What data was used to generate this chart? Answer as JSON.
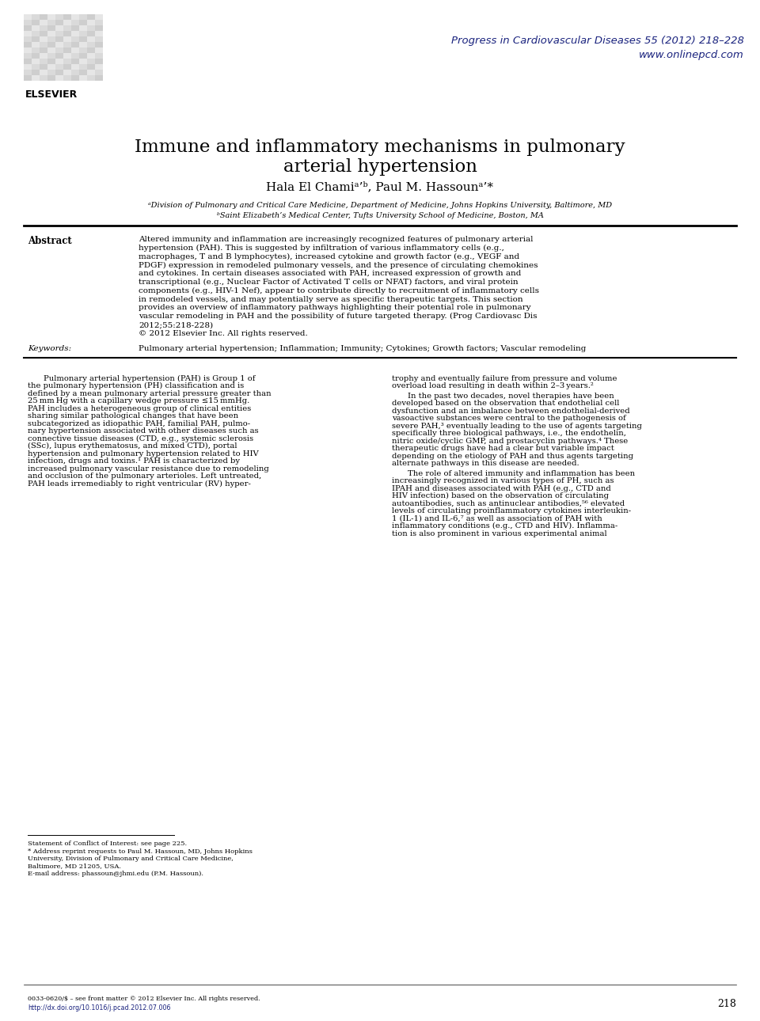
{
  "bg_color": "#ffffff",
  "journal_color": "#1a237e",
  "journal_line1": "Progress in Cardiovascular Diseases 55 (2012) 218–228",
  "journal_line2": "www.onlinepcd.com",
  "title_line1": "Immune and inflammatory mechanisms in pulmonary",
  "title_line2": "arterial hypertension",
  "authors": "Hala El Chamiᵃ’ᵇ, Paul M. Hassounᵃ’*",
  "affil_a": "ᵃDivision of Pulmonary and Critical Care Medicine, Department of Medicine, Johns Hopkins University, Baltimore, MD",
  "affil_b": "ᵇSaint Elizabeth’s Medical Center, Tufts University School of Medicine, Boston, MA",
  "abstract_label": "Abstract",
  "keywords_label": "Keywords:",
  "keywords_text": "Pulmonary arterial hypertension; Inflammation; Immunity; Cytokines; Growth factors; Vascular remodeling",
  "footnote_conflict": "Statement of Conflict of Interest: see page 225.",
  "footnote_address1": "* Address reprint requests to Paul M. Hassoun, MD, Johns Hopkins",
  "footnote_address2": "University, Division of Pulmonary and Critical Care Medicine,",
  "footnote_address3": "Baltimore, MD 21205, USA.",
  "footnote_email": "E-mail address: phassoun@jhmi.edu (P.M. Hassoun).",
  "footer_issn": "0033-0620/$ – see front matter © 2012 Elsevier Inc. All rights reserved.",
  "footer_doi": "http://dx.doi.org/10.1016/j.pcad.2012.07.006",
  "footer_page": "218",
  "text_color": "#000000",
  "body_font_size": 7.2,
  "title_font_size": 16.5,
  "authors_font_size": 11,
  "affil_font_size": 7.0,
  "abstract_label_font_size": 8.5,
  "abstract_text_font_size": 7.5,
  "journal_font_size": 9.5,
  "abstract_lines": [
    "Altered immunity and inflammation are increasingly recognized features of pulmonary arterial",
    "hypertension (PAH). This is suggested by infiltration of various inflammatory cells (e.g.,",
    "macrophages, T and B lymphocytes), increased cytokine and growth factor (e.g., VEGF and",
    "PDGF) expression in remodeled pulmonary vessels, and the presence of circulating chemokines",
    "and cytokines. In certain diseases associated with PAH, increased expression of growth and",
    "transcriptional (e.g., Nuclear Factor of Activated T cells or NFAT) factors, and viral protein",
    "components (e.g., HIV-1 Nef), appear to contribute directly to recruitment of inflammatory cells",
    "in remodeled vessels, and may potentially serve as specific therapeutic targets. This section",
    "provides an overview of inflammatory pathways highlighting their potential role in pulmonary",
    "vascular remodeling in PAH and the possibility of future targeted therapy. (Prog Cardiovasc Dis",
    "2012;55:218-228)",
    "© 2012 Elsevier Inc. All rights reserved."
  ],
  "col1_lines": [
    "Pulmonary arterial hypertension (PAH) is Group 1 of",
    "the pulmonary hypertension (PH) classification and is",
    "defined by a mean pulmonary arterial pressure greater than",
    "25 mm Hg with a capillary wedge pressure ≤15 mmHg.",
    "PAH includes a heterogeneous group of clinical entities",
    "sharing similar pathological changes that have been",
    "subcategorized as idiopathic PAH, familial PAH, pulmo-",
    "nary hypertension associated with other diseases such as",
    "connective tissue diseases (CTD, e.g., systemic sclerosis",
    "(SSc), lupus erythematosus, and mixed CTD), portal",
    "hypertension and pulmonary hypertension related to HIV",
    "infection, drugs and toxins.¹ PAH is characterized by",
    "increased pulmonary vascular resistance due to remodeling",
    "and occlusion of the pulmonary arterioles. Left untreated,",
    "PAH leads irremediably to right ventricular (RV) hyper-"
  ],
  "col2_lines_p1": [
    "trophy and eventually failure from pressure and volume",
    "overload load resulting in death within 2–3 years.²"
  ],
  "col2_lines_p2": [
    "In the past two decades, novel therapies have been",
    "developed based on the observation that endothelial cell",
    "dysfunction and an imbalance between endothelial-derived",
    "vasoactive substances were central to the pathogenesis of",
    "severe PAH,³ eventually leading to the use of agents targeting",
    "specifically three biological pathways, i.e., the endothelin,",
    "nitric oxide/cyclic GMP, and prostacyclin pathways.⁴ These",
    "therapeutic drugs have had a clear but variable impact",
    "depending on the etiology of PAH and thus agents targeting",
    "alternate pathways in this disease are needed."
  ],
  "col2_lines_p3": [
    "The role of altered immunity and inflammation has been",
    "increasingly recognized in various types of PH, such as",
    "IPAH and diseases associated with PAH (e.g., CTD and",
    "HIV infection) based on the observation of circulating",
    "autoantibodies, such as antinuclear antibodies,⁵⁶ elevated",
    "levels of circulating proinflammatory cytokines interleukin-",
    "1 (IL-1) and IL-6,⁷ as well as association of PAH with",
    "inflammatory conditions (e.g., CTD and HIV). Inflamma-",
    "tion is also prominent in various experimental animal"
  ]
}
